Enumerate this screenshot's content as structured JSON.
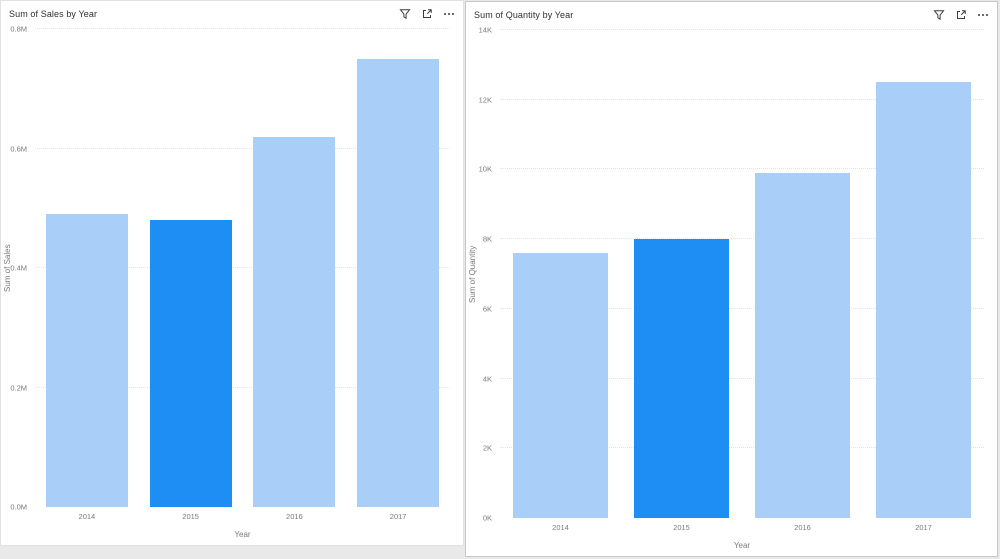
{
  "page": {
    "background_color": "#e9e9e9"
  },
  "colors": {
    "bar": "#a9cef8",
    "bar_highlighted": "#1e8ef5",
    "title_text": "#303030",
    "axis_text": "#7a7a7a",
    "gridline": "#e3e3e3"
  },
  "visual_toolbar": {
    "icons": [
      "filter-icon",
      "focus-mode-icon",
      "more-options-icon"
    ]
  },
  "chart_data": [
    {
      "type": "bar",
      "title": "Sum of Sales by Year",
      "xlabel": "Year",
      "ylabel": "Sum of Sales",
      "categories": [
        "2014",
        "2015",
        "2016",
        "2017"
      ],
      "values": [
        0.49,
        0.48,
        0.62,
        0.75
      ],
      "value_suffix": "M",
      "highlighted_index": 1,
      "ylim": [
        0,
        0.8
      ],
      "ytick_values": [
        0,
        0.2,
        0.4,
        0.6,
        0.8
      ],
      "ytick_labels": [
        "0.0M",
        "0.2M",
        "0.4M",
        "0.6M",
        "0.8M"
      ],
      "legend": "none",
      "grid": "horizontal-dotted"
    },
    {
      "type": "bar",
      "title": "Sum of Quantity by Year",
      "xlabel": "Year",
      "ylabel": "Sum of Quantity",
      "categories": [
        "2014",
        "2015",
        "2016",
        "2017"
      ],
      "values": [
        7.6,
        8.0,
        9.9,
        12.5
      ],
      "value_suffix": "K",
      "highlighted_index": 1,
      "ylim": [
        0,
        14
      ],
      "ytick_values": [
        0,
        2,
        4,
        6,
        8,
        10,
        12,
        14
      ],
      "ytick_labels": [
        "0K",
        "2K",
        "4K",
        "6K",
        "8K",
        "10K",
        "12K",
        "14K"
      ],
      "legend": "none",
      "grid": "horizontal-dotted"
    }
  ]
}
